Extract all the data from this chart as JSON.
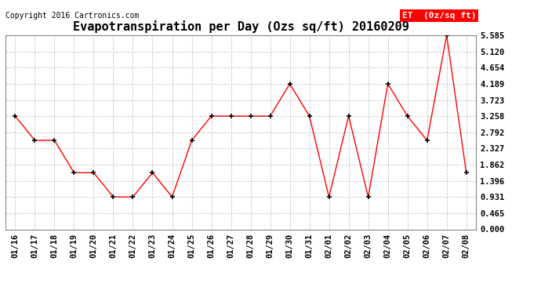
{
  "title": "Evapotranspiration per Day (Ozs sq/ft) 20160209",
  "copyright": "Copyright 2016 Cartronics.com",
  "legend_label": "ET  (0z/sq ft)",
  "x_labels": [
    "01/16",
    "01/17",
    "01/18",
    "01/19",
    "01/20",
    "01/21",
    "01/22",
    "01/23",
    "01/24",
    "01/25",
    "01/26",
    "01/27",
    "01/28",
    "01/29",
    "01/30",
    "01/31",
    "02/01",
    "02/02",
    "02/03",
    "02/04",
    "02/05",
    "02/06",
    "02/07",
    "02/08"
  ],
  "y_values": [
    3.258,
    2.56,
    2.56,
    1.63,
    1.63,
    0.931,
    0.931,
    1.63,
    0.931,
    2.56,
    3.258,
    3.258,
    3.258,
    3.258,
    4.189,
    3.258,
    0.931,
    3.258,
    0.931,
    4.189,
    3.258,
    2.56,
    5.585,
    1.63
  ],
  "line_color": "#ff0000",
  "marker_color": "#000000",
  "background_color": "#ffffff",
  "grid_color": "#c8c8c8",
  "y_ticks": [
    0.0,
    0.465,
    0.931,
    1.396,
    1.862,
    2.327,
    2.792,
    3.258,
    3.723,
    4.189,
    4.654,
    5.12,
    5.585
  ],
  "ylim": [
    0.0,
    5.585
  ],
  "legend_bg": "#ff0000",
  "legend_text_color": "#ffffff",
  "title_fontsize": 11,
  "copyright_fontsize": 7,
  "tick_fontsize": 7.5,
  "legend_fontsize": 8
}
